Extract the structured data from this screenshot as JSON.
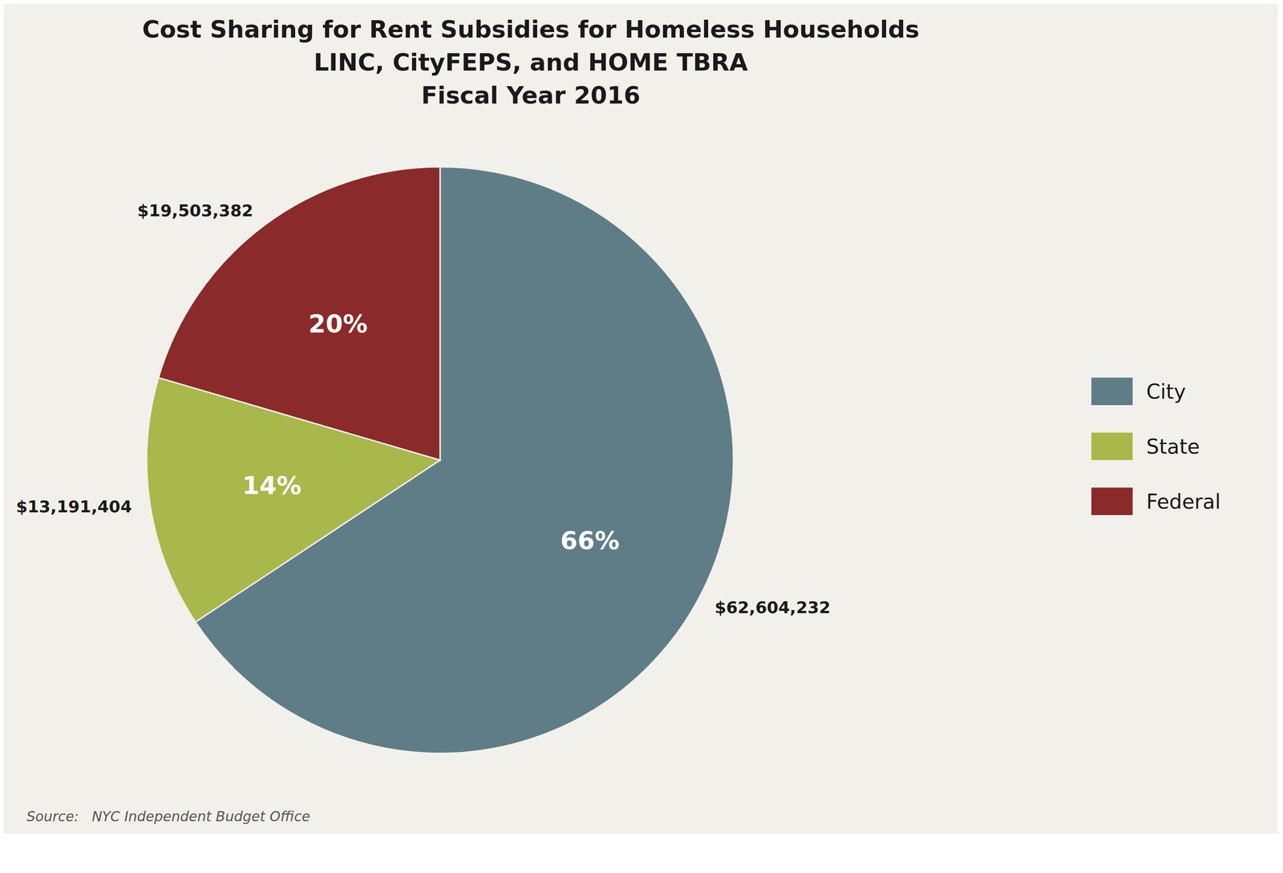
{
  "chart_data": {
    "type": "pie",
    "title": "Cost Sharing for Rent Subsidies for Homeless Households",
    "subtitle": [
      "LINC, CityFEPS, and HOME TBRA",
      "Fiscal Year 2016"
    ],
    "categories": [
      "City",
      "State",
      "Federal"
    ],
    "values": [
      62604232,
      13191404,
      19503382
    ],
    "value_labels": [
      "$62,604,232",
      "$13,191,404",
      "$19,503,382"
    ],
    "percentages": [
      66,
      14,
      20
    ],
    "percentage_labels": [
      "66%",
      "14%",
      "20%"
    ],
    "colors": [
      "#5f7d87",
      "#a8b84b",
      "#8b2a2a"
    ],
    "data_labels": true,
    "legend": "right",
    "annotations": [
      "Source:   NYC Independent Budget Office"
    ]
  }
}
